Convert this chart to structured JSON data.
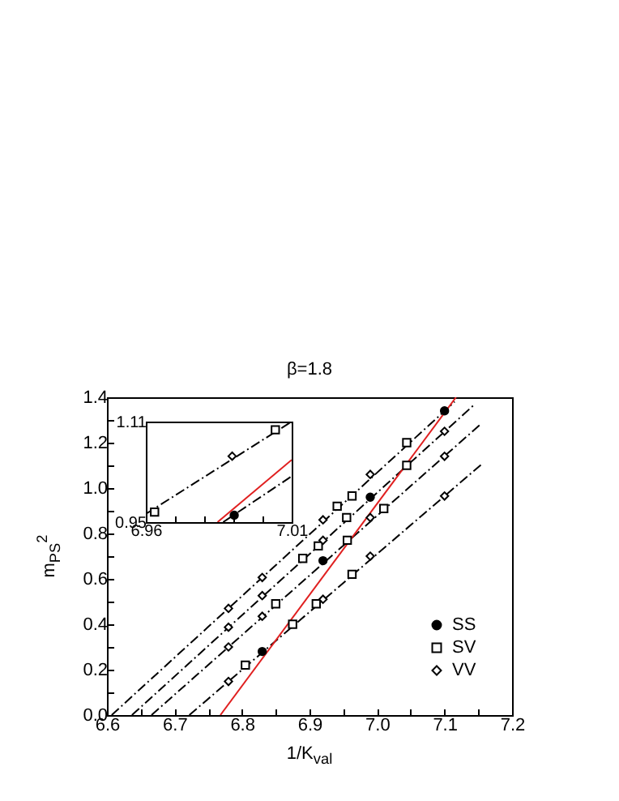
{
  "chart_data": [
    {
      "type": "scatter",
      "title": "β=1.8",
      "xlabel": "1/K$_{val}$",
      "ylabel": "m$_{PS}$$^{2}$",
      "xlim": [
        6.6,
        7.2
      ],
      "ylim": [
        0,
        1.4
      ],
      "xticks": [
        6.6,
        {
          "value": 6.65,
          "label": null
        },
        6.7,
        {
          "value": 6.75,
          "label": null
        },
        6.8,
        {
          "value": 6.85,
          "label": null
        },
        6.9,
        {
          "value": 6.95,
          "label": null
        },
        {
          "value": 7,
          "label": "7.0"
        },
        {
          "value": 7.05,
          "label": null
        },
        7.1,
        {
          "value": 7.15,
          "label": null
        },
        7.2
      ],
      "yticks": [
        {
          "value": 0,
          "label": "0.0"
        },
        {
          "value": 0.1,
          "label": null
        },
        0.2,
        {
          "value": 0.3,
          "label": null
        },
        0.4,
        {
          "value": 0.5,
          "label": null
        },
        0.6,
        {
          "value": 0.7,
          "label": null
        },
        0.8,
        {
          "value": 0.9,
          "label": null
        },
        {
          "value": 1,
          "label": "1.0"
        },
        {
          "value": 1.1,
          "label": null
        },
        1.2,
        {
          "value": 1.3,
          "label": null
        },
        1.4
      ],
      "legend": "bottom right",
      "series": [
        {
          "type": "line",
          "color": "#000000",
          "line_style": "dashed",
          "x": [
            6.607,
            7.115
          ],
          "values": [
            0,
            1.38
          ]
        },
        {
          "type": "line",
          "color": "#000000",
          "line_style": "dashed",
          "x": [
            6.637,
            7.145
          ],
          "values": [
            0,
            1.37
          ]
        },
        {
          "type": "line",
          "color": "#000000",
          "line_style": "dashed",
          "x": [
            6.666,
            7.153
          ],
          "values": [
            0,
            1.28
          ]
        },
        {
          "type": "line",
          "color": "#000000",
          "line_style": "dashed",
          "x": [
            6.722,
            7.155
          ],
          "values": [
            0,
            1.105
          ]
        },
        {
          "type": "line",
          "color": "#e02020",
          "line_style": "solid",
          "x": [
            6.768,
            7.117
          ],
          "values": [
            0,
            1.4
          ]
        },
        {
          "name": "SS",
          "color": "#000000",
          "marker": "circle",
          "x": [
            6.83,
            6.92,
            6.99,
            7.1
          ],
          "values": [
            0.28,
            0.68,
            0.96,
            1.34
          ]
        },
        {
          "name": "SV",
          "color": "#000000",
          "marker": "square",
          "x": [
            6.805,
            6.85,
            6.875,
            6.89,
            6.91,
            6.913,
            6.941,
            6.955,
            6.956,
            6.963,
            6.963,
            7.01,
            7.044,
            7.044
          ],
          "values": [
            0.22,
            0.49,
            0.4,
            0.69,
            0.49,
            0.745,
            0.92,
            0.87,
            0.77,
            0.965,
            0.62,
            0.91,
            1.1,
            1.2
          ]
        },
        {
          "name": "VV",
          "color": "#000000",
          "marker": "diamond",
          "x": [
            6.78,
            6.78,
            6.78,
            6.78,
            6.83,
            6.83,
            6.83,
            6.92,
            6.92,
            6.92,
            6.99,
            6.99,
            6.99,
            7.1,
            7.1,
            7.1
          ],
          "values": [
            0.47,
            0.387,
            0.3,
            0.148,
            0.606,
            0.526,
            0.435,
            0.86,
            0.77,
            0.51,
            1.06,
            0.87,
            0.7,
            1.25,
            1.14,
            0.965
          ]
        }
      ]
    },
    {
      "type": "scatter",
      "xlim": [
        6.96,
        7.01
      ],
      "ylim": [
        0.95,
        1.11
      ],
      "xticks": [
        6.96,
        {
          "value": 6.97,
          "label": null
        },
        {
          "value": 6.98,
          "label": null
        },
        {
          "value": 6.99,
          "label": null
        },
        {
          "value": 7,
          "label": null
        },
        7.01
      ],
      "yticks": [
        0.95,
        1.11
      ],
      "series": [
        {
          "type": "line",
          "color": "#000000",
          "line_style": "dashed",
          "x": [
            6.96,
            7.01
          ],
          "values": [
            0.963,
            1.11
          ]
        },
        {
          "type": "line",
          "color": "#000000",
          "line_style": "dashed",
          "x": [
            6.9865,
            7.01
          ],
          "values": [
            0.95,
            1.023
          ]
        },
        {
          "type": "line",
          "color": "#e02020",
          "line_style": "solid",
          "x": [
            6.9846,
            7.01
          ],
          "values": [
            0.95,
            1.049
          ]
        },
        {
          "color": "#000000",
          "marker": "circle",
          "x": [
            6.9903
          ],
          "values": [
            0.961
          ]
        },
        {
          "color": "#000000",
          "marker": "square",
          "x": [
            6.963,
            7.0044
          ],
          "values": [
            0.966,
            1.097
          ]
        },
        {
          "color": "#000000",
          "marker": "diamond",
          "x": [
            6.9896
          ],
          "values": [
            1.055
          ]
        }
      ]
    }
  ]
}
